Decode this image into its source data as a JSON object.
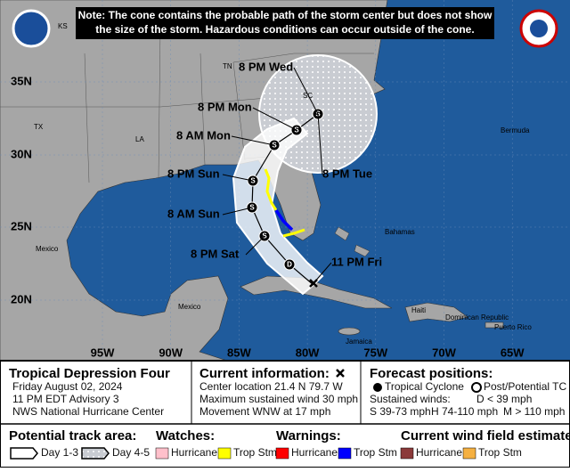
{
  "note": [
    "Note: The cone contains the probable path of the storm center but does not show",
    "the size of the storm. Hazardous conditions can occur outside of the cone."
  ],
  "lat_labels": [
    "35N",
    "30N",
    "25N",
    "20N"
  ],
  "lon_labels": [
    "95W",
    "90W",
    "85W",
    "80W",
    "75W",
    "70W",
    "65W"
  ],
  "places": [
    "KS",
    "TX",
    "LA",
    "TN",
    "SC",
    "Bermuda",
    "Mexico",
    "Bahamas",
    "Mexico",
    "Jamaica",
    "Haiti",
    "Dominican Republic",
    "Puerto Rico"
  ],
  "track_points": [
    {
      "label": "11 PM Fri"
    },
    {
      "marker": "D"
    },
    {
      "marker": "S",
      "label": "8 PM Sat"
    },
    {
      "marker": "S",
      "label": "8 AM Sun"
    },
    {
      "marker": "S",
      "label": "8 PM Sun"
    },
    {
      "marker": "S",
      "label": "8 AM Mon"
    },
    {
      "marker": "S",
      "label": "8 PM Mon"
    },
    {
      "marker": "S",
      "label": "8 PM Tue"
    },
    {
      "label": "8 PM Wed"
    }
  ],
  "storm": {
    "name": "Tropical Depression Four",
    "date": "Friday August 02, 2024",
    "advisory": "11 PM EDT Advisory 3",
    "source": "NWS National Hurricane Center"
  },
  "current": {
    "title": "Current information:",
    "location": "Center location 21.4 N 79.7 W",
    "wind": "Maximum sustained wind 30 mph",
    "movement": "Movement WNW at 17 mph"
  },
  "forecast": {
    "title": "Forecast positions:",
    "tc": "Tropical Cyclone",
    "post": "Post/Potential TC",
    "sustained": "Sustained winds:",
    "d": "D < 39 mph",
    "s": "S 39-73 mph",
    "h": "H 74-110 mph",
    "m": "M > 110 mph"
  },
  "legend": {
    "track": {
      "title": "Potential track area:",
      "items": [
        "Day 1-3",
        "Day 4-5"
      ]
    },
    "watches": {
      "title": "Watches:",
      "items": [
        "Hurricane",
        "Trop Stm"
      ]
    },
    "warnings": {
      "title": "Warnings:",
      "items": [
        "Hurricane",
        "Trop Stm"
      ]
    },
    "wind_field": {
      "title": "Current wind field estimate:",
      "items": [
        "Hurricane",
        "Trop Stm"
      ]
    }
  }
}
